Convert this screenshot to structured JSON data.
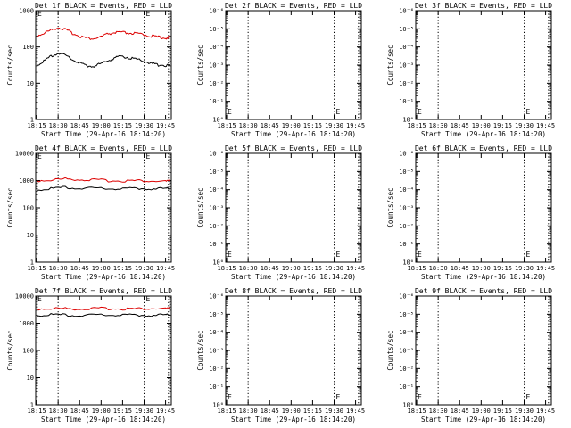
{
  "colors": {
    "events": "#000000",
    "lld": "#dd0000",
    "background": "#ffffff",
    "axes": "#000000"
  },
  "x_ticks": [
    "18:15",
    "18:30",
    "18:45",
    "19:00",
    "19:15",
    "19:30",
    "19:45"
  ],
  "x_label": "Start Time (29-Apr-16 18:14:20)",
  "y_label": "Counts/sec",
  "marker_label": "E",
  "chart_data": [
    {
      "type": "line",
      "title": "Det 1f BLACK = Events, RED = LLD",
      "xlabel": "Start Time (29-Apr-16 18:14:20)",
      "ylabel": "Counts/sec",
      "yscale": "log",
      "ylim": [
        1,
        1000
      ],
      "y_ticks": [
        "1",
        "10",
        "100",
        "1000"
      ],
      "x": [
        "18:15",
        "18:20",
        "18:25",
        "18:30",
        "18:35",
        "18:40",
        "18:45",
        "18:50",
        "18:55",
        "19:00",
        "19:05",
        "19:10",
        "19:15",
        "19:20",
        "19:25",
        "19:30",
        "19:35",
        "19:40",
        "19:45",
        "19:48"
      ],
      "series": [
        {
          "name": "LLD",
          "color": "#dd0000",
          "values": [
            200,
            240,
            290,
            350,
            300,
            240,
            200,
            175,
            170,
            190,
            230,
            250,
            250,
            240,
            230,
            220,
            200,
            185,
            180,
            180
          ]
        },
        {
          "name": "Events",
          "color": "#000000",
          "values": [
            32,
            40,
            55,
            70,
            58,
            45,
            36,
            30,
            30,
            34,
            42,
            50,
            55,
            50,
            45,
            40,
            35,
            32,
            31,
            31
          ]
        }
      ],
      "vlines": [
        "18:30",
        "19:30"
      ]
    },
    {
      "type": "line",
      "title": "Det 2f BLACK = Events, RED = LLD",
      "xlabel": "Start Time (29-Apr-16 18:14:20)",
      "ylabel": "Counts/sec",
      "yscale": "log",
      "ylim": [
        1,
        1000000
      ],
      "y_ticks": [
        "10⁰",
        "10⁻¹",
        "10⁻²",
        "10⁻³",
        "10⁻⁴",
        "10⁻⁵",
        "10⁻⁶"
      ],
      "series": [],
      "vlines": [
        "18:30",
        "19:30"
      ]
    },
    {
      "type": "line",
      "title": "Det 3f BLACK = Events, RED = LLD",
      "xlabel": "Start Time (29-Apr-16 18:14:20)",
      "ylabel": "Counts/sec",
      "yscale": "log",
      "ylim": [
        1,
        1000000
      ],
      "y_ticks": [
        "10⁰",
        "10⁻¹",
        "10⁻²",
        "10⁻³",
        "10⁻⁴",
        "10⁻⁵",
        "10⁻⁶"
      ],
      "series": [],
      "vlines": [
        "18:30",
        "19:30"
      ]
    },
    {
      "type": "line",
      "title": "Det 4f BLACK = Events, RED = LLD",
      "xlabel": "Start Time (29-Apr-16 18:14:20)",
      "ylabel": "Counts/sec",
      "yscale": "log",
      "ylim": [
        1,
        10000
      ],
      "y_ticks": [
        "1",
        "10",
        "100",
        "1000",
        "10000"
      ],
      "x": [
        "18:15",
        "18:25",
        "18:35",
        "18:45",
        "18:55",
        "19:05",
        "19:15",
        "19:25",
        "19:35",
        "19:45",
        "19:48"
      ],
      "series": [
        {
          "name": "LLD",
          "color": "#dd0000",
          "values": [
            1000,
            1050,
            1150,
            1100,
            1050,
            1000,
            980,
            990,
            950,
            930,
            930
          ]
        },
        {
          "name": "Events",
          "color": "#000000",
          "values": [
            480,
            500,
            560,
            540,
            520,
            510,
            500,
            520,
            510,
            500,
            500
          ]
        }
      ],
      "vlines": [
        "18:30",
        "19:30"
      ]
    },
    {
      "type": "line",
      "title": "Det 5f BLACK = Events, RED = LLD",
      "xlabel": "Start Time (29-Apr-16 18:14:20)",
      "ylabel": "Counts/sec",
      "yscale": "log",
      "ylim": [
        1,
        1000000
      ],
      "y_ticks": [
        "10⁰",
        "10⁻¹",
        "10⁻²",
        "10⁻³",
        "10⁻⁴",
        "10⁻⁵",
        "10⁻⁶"
      ],
      "series": [],
      "vlines": [
        "18:30",
        "19:30"
      ]
    },
    {
      "type": "line",
      "title": "Det 6f BLACK = Events, RED = LLD",
      "xlabel": "Start Time (29-Apr-16 18:14:20)",
      "ylabel": "Counts/sec",
      "yscale": "log",
      "ylim": [
        1,
        1000000
      ],
      "y_ticks": [
        "10⁰",
        "10⁻¹",
        "10⁻²",
        "10⁻³",
        "10⁻⁴",
        "10⁻⁵",
        "10⁻⁶"
      ],
      "series": [],
      "vlines": [
        "18:30",
        "19:30"
      ]
    },
    {
      "type": "line",
      "title": "Det 7f BLACK = Events, RED = LLD",
      "xlabel": "Start Time (29-Apr-16 18:14:20)",
      "ylabel": "Counts/sec",
      "yscale": "log",
      "ylim": [
        1,
        10000
      ],
      "y_ticks": [
        "1",
        "10",
        "100",
        "1000",
        "10000"
      ],
      "x": [
        "18:15",
        "18:25",
        "18:35",
        "18:45",
        "18:55",
        "19:05",
        "19:15",
        "19:25",
        "19:35",
        "19:45",
        "19:48"
      ],
      "series": [
        {
          "name": "LLD",
          "color": "#dd0000",
          "values": [
            3400,
            3500,
            3450,
            3400,
            3450,
            3500,
            3450,
            3400,
            3450,
            3400,
            3400
          ]
        },
        {
          "name": "Events",
          "color": "#000000",
          "values": [
            2000,
            2050,
            2000,
            1980,
            2000,
            2020,
            2000,
            1980,
            2000,
            1990,
            1990
          ]
        }
      ],
      "vlines": [
        "18:30",
        "19:30"
      ]
    },
    {
      "type": "line",
      "title": "Det 8f BLACK = Events, RED = LLD",
      "xlabel": "Start Time (29-Apr-16 18:14:20)",
      "ylabel": "Counts/sec",
      "yscale": "log",
      "ylim": [
        1,
        1000000
      ],
      "y_ticks": [
        "10⁰",
        "10⁻¹",
        "10⁻²",
        "10⁻³",
        "10⁻⁴",
        "10⁻⁵",
        "10⁻⁶"
      ],
      "series": [],
      "vlines": [
        "18:30",
        "19:30"
      ]
    },
    {
      "type": "line",
      "title": "Det 9f BLACK = Events, RED = LLD",
      "xlabel": "Start Time (29-Apr-16 18:14:20)",
      "ylabel": "Counts/sec",
      "yscale": "log",
      "ylim": [
        1,
        1000000
      ],
      "y_ticks": [
        "10⁰",
        "10⁻¹",
        "10⁻²",
        "10⁻³",
        "10⁻⁴",
        "10⁻⁵",
        "10⁻⁶"
      ],
      "series": [],
      "vlines": [
        "18:30",
        "19:30"
      ]
    }
  ]
}
